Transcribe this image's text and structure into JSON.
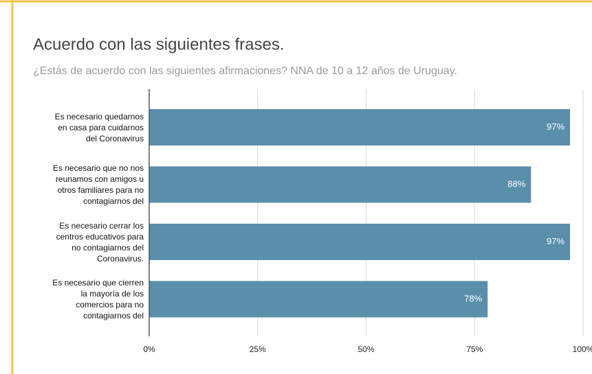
{
  "chart_data": {
    "type": "bar",
    "orientation": "horizontal",
    "title": "Acuerdo con las siguientes frases.",
    "subtitle": "¿Estás de acuerdo con las siguientes afirmaciones? NNA de 10 a 12 años de Uruguay.",
    "categories": [
      "Es necesario quedarnos\nen casa para cuidarnos\ndel Coronavirus",
      "Es necesario que no nos\nreunamos con amigos u\notros familiares para no\ncontagiarnos del",
      "Es necesario cerrar los\ncentros educativos para\nno contagiarnos del\nCoronavirus.",
      "Es necesario que cierren\nla mayoría de los\ncomercios para no\ncontagiarnos del"
    ],
    "values": [
      97,
      88,
      97,
      78
    ],
    "value_labels": [
      "97%",
      "88%",
      "97%",
      "78%"
    ],
    "color": "#5a8fab",
    "xlim": [
      0,
      100
    ],
    "xticks": [
      {
        "value": 0,
        "label": "0%"
      },
      {
        "value": 25,
        "label": "25%"
      },
      {
        "value": 50,
        "label": "50%"
      },
      {
        "value": 75,
        "label": "75%"
      },
      {
        "value": 100,
        "label": "100%"
      }
    ],
    "grid": true
  }
}
